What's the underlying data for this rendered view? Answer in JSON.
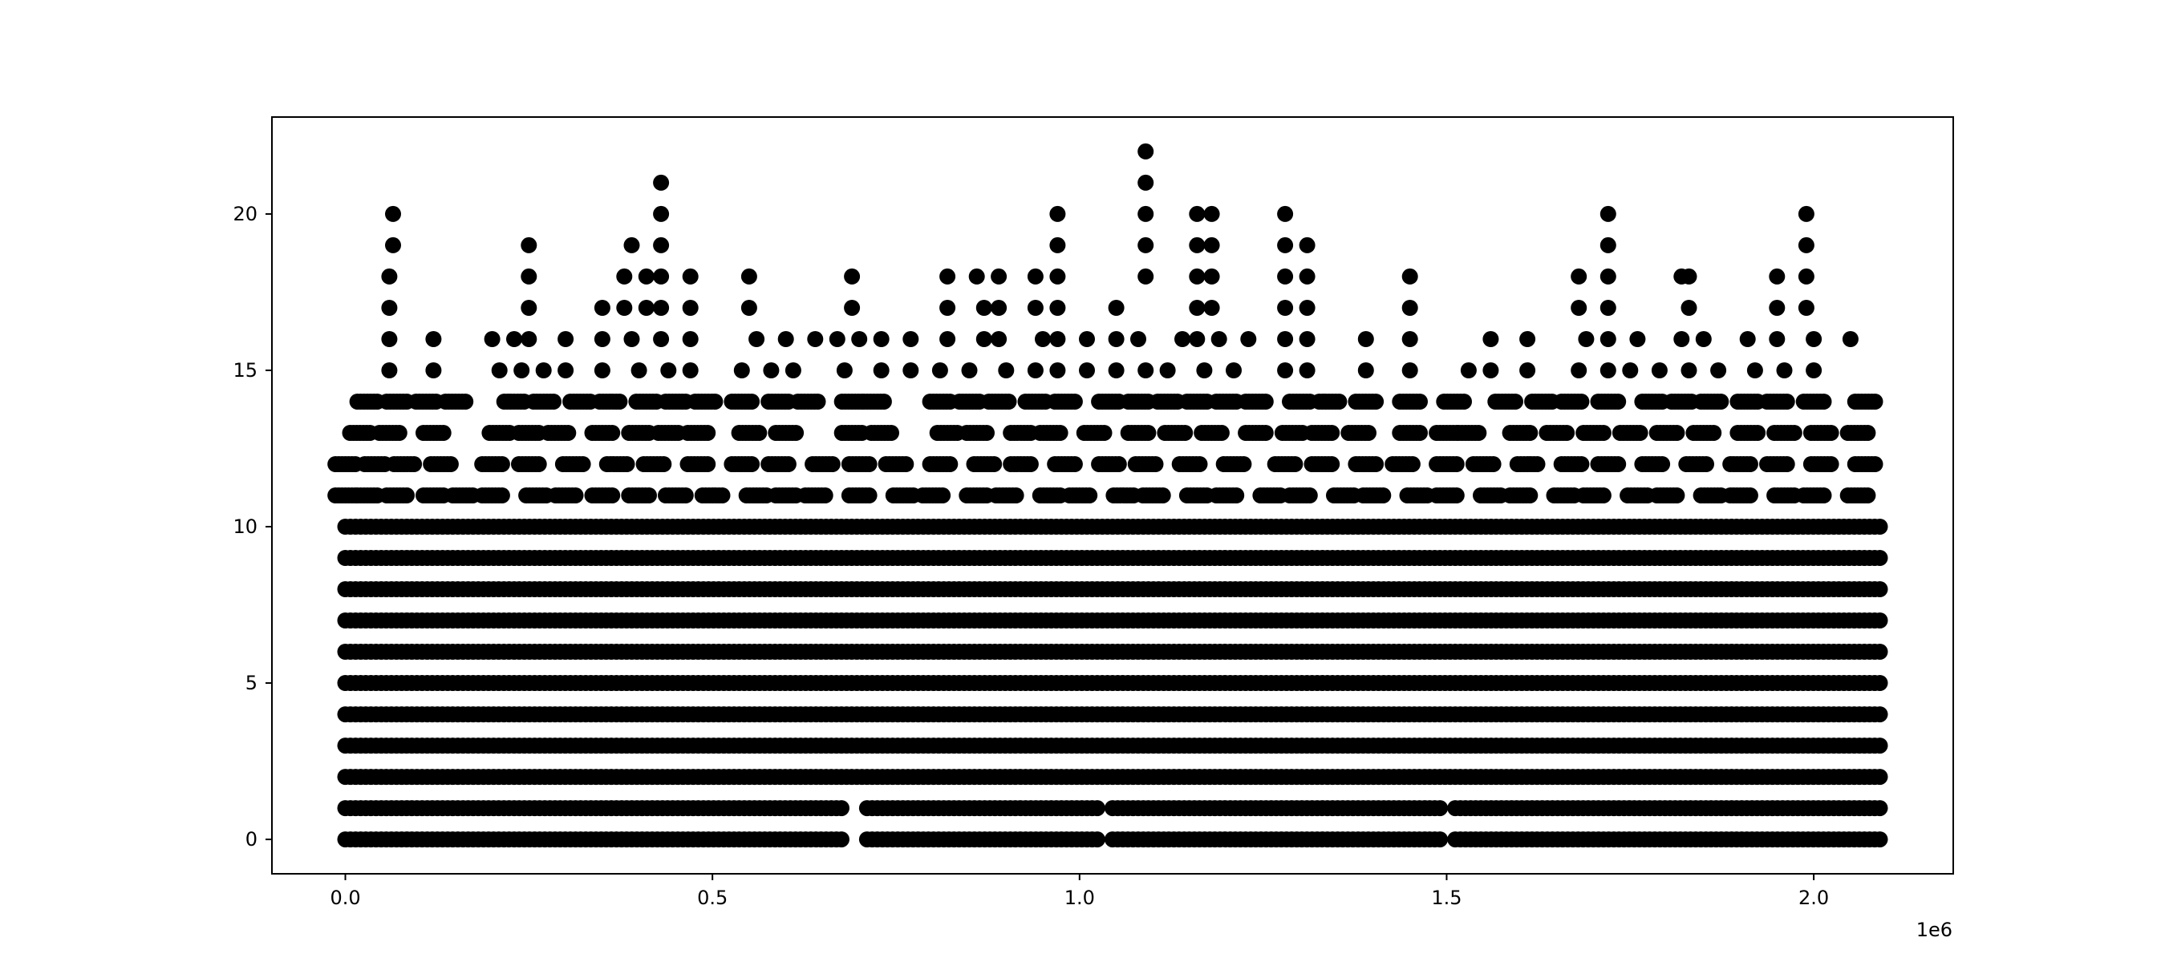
{
  "chart_data": {
    "type": "scatter",
    "title": "",
    "xlabel": "",
    "ylabel": "",
    "x_offset_label": "1e6",
    "xlim": [
      -100000,
      2190000
    ],
    "ylim": [
      -1.1,
      23.1
    ],
    "x_range_of_points": [
      0,
      2090000
    ],
    "grid": false,
    "legend": "none",
    "marker_color": "#000000",
    "xticks": [
      {
        "value": 0,
        "label": "0.0"
      },
      {
        "value": 500000,
        "label": "0.5"
      },
      {
        "value": 1000000,
        "label": "1.0"
      },
      {
        "value": 1500000,
        "label": "1.5"
      },
      {
        "value": 2000000,
        "label": "2.0"
      }
    ],
    "yticks": [
      {
        "value": 0,
        "label": "0"
      },
      {
        "value": 5,
        "label": "5"
      },
      {
        "value": 10,
        "label": "10"
      },
      {
        "value": 15,
        "label": "15"
      },
      {
        "value": 20,
        "label": "20"
      }
    ],
    "dense_levels": [
      2,
      3,
      4,
      5,
      6,
      7,
      8,
      9,
      10
    ],
    "level_gaps": [
      {
        "y": 0,
        "gaps": [
          [
            680000,
            705000
          ],
          [
            1025000,
            1040000
          ],
          [
            1495000,
            1510000
          ]
        ]
      },
      {
        "y": 1,
        "gaps": [
          [
            680000,
            705000
          ],
          [
            1025000,
            1040000
          ],
          [
            1495000,
            1510000
          ]
        ]
      }
    ],
    "sparse_levels": [
      {
        "y": 11,
        "x": [
          0,
          30000,
          70000,
          120000,
          160000,
          200000,
          260000,
          300000,
          350000,
          400000,
          450000,
          500000,
          560000,
          600000,
          640000,
          700000,
          760000,
          800000,
          860000,
          900000,
          960000,
          1000000,
          1060000,
          1100000,
          1160000,
          1200000,
          1260000,
          1300000,
          1360000,
          1400000,
          1460000,
          1500000,
          1560000,
          1600000,
          1660000,
          1700000,
          1760000,
          1800000,
          1860000,
          1900000,
          1960000,
          2000000,
          2060000
        ]
      },
      {
        "y": 12,
        "x": [
          0,
          40000,
          80000,
          130000,
          200000,
          250000,
          310000,
          370000,
          420000,
          480000,
          540000,
          590000,
          650000,
          700000,
          750000,
          810000,
          870000,
          920000,
          980000,
          1040000,
          1090000,
          1150000,
          1210000,
          1280000,
          1330000,
          1390000,
          1440000,
          1500000,
          1550000,
          1610000,
          1670000,
          1720000,
          1780000,
          1840000,
          1900000,
          1950000,
          2010000,
          2070000
        ]
      },
      {
        "y": 13,
        "x": [
          20000,
          60000,
          120000,
          210000,
          250000,
          290000,
          350000,
          400000,
          440000,
          480000,
          550000,
          600000,
          690000,
          730000,
          820000,
          860000,
          920000,
          960000,
          1020000,
          1080000,
          1130000,
          1180000,
          1240000,
          1290000,
          1330000,
          1380000,
          1450000,
          1500000,
          1530000,
          1600000,
          1650000,
          1700000,
          1750000,
          1800000,
          1850000,
          1910000,
          1960000,
          2010000,
          2060000
        ]
      },
      {
        "y": 14,
        "x": [
          30000,
          70000,
          110000,
          150000,
          230000,
          270000,
          320000,
          360000,
          410000,
          450000,
          490000,
          540000,
          590000,
          630000,
          690000,
          720000,
          810000,
          850000,
          890000,
          940000,
          980000,
          1040000,
          1080000,
          1120000,
          1160000,
          1200000,
          1240000,
          1300000,
          1340000,
          1390000,
          1450000,
          1510000,
          1580000,
          1630000,
          1670000,
          1720000,
          1780000,
          1820000,
          1860000,
          1910000,
          1950000,
          2000000,
          2070000
        ]
      },
      {
        "y": 15,
        "x": [
          60000,
          120000,
          210000,
          240000,
          270000,
          300000,
          350000,
          400000,
          440000,
          470000,
          540000,
          580000,
          610000,
          680000,
          730000,
          770000,
          810000,
          850000,
          900000,
          940000,
          970000,
          1010000,
          1050000,
          1090000,
          1120000,
          1170000,
          1210000,
          1280000,
          1310000,
          1390000,
          1450000,
          1530000,
          1560000,
          1610000,
          1680000,
          1720000,
          1750000,
          1790000,
          1830000,
          1870000,
          1920000,
          1960000,
          2000000
        ]
      },
      {
        "y": 16,
        "x": [
          60000,
          120000,
          200000,
          230000,
          250000,
          300000,
          350000,
          390000,
          430000,
          470000,
          560000,
          600000,
          640000,
          670000,
          700000,
          730000,
          770000,
          820000,
          870000,
          890000,
          950000,
          970000,
          1010000,
          1050000,
          1080000,
          1140000,
          1160000,
          1190000,
          1230000,
          1280000,
          1310000,
          1390000,
          1450000,
          1560000,
          1610000,
          1690000,
          1720000,
          1760000,
          1820000,
          1850000,
          1910000,
          1950000,
          2000000,
          2050000
        ]
      },
      {
        "y": 17,
        "x": [
          60000,
          250000,
          350000,
          380000,
          410000,
          430000,
          470000,
          550000,
          690000,
          820000,
          870000,
          890000,
          940000,
          970000,
          1050000,
          1160000,
          1180000,
          1280000,
          1310000,
          1450000,
          1680000,
          1720000,
          1830000,
          1950000,
          1990000
        ]
      },
      {
        "y": 18,
        "x": [
          60000,
          250000,
          380000,
          410000,
          430000,
          470000,
          550000,
          690000,
          820000,
          860000,
          890000,
          940000,
          970000,
          1090000,
          1160000,
          1180000,
          1280000,
          1310000,
          1450000,
          1680000,
          1720000,
          1820000,
          1830000,
          1950000,
          1990000
        ]
      },
      {
        "y": 19,
        "x": [
          65000,
          250000,
          390000,
          430000,
          970000,
          1090000,
          1160000,
          1180000,
          1280000,
          1310000,
          1720000,
          1990000
        ]
      },
      {
        "y": 20,
        "x": [
          65000,
          430000,
          970000,
          1090000,
          1160000,
          1180000,
          1280000,
          1720000,
          1990000
        ]
      },
      {
        "y": 21,
        "x": [
          430000,
          1090000
        ]
      },
      {
        "y": 22,
        "x": [
          1090000
        ]
      }
    ]
  }
}
